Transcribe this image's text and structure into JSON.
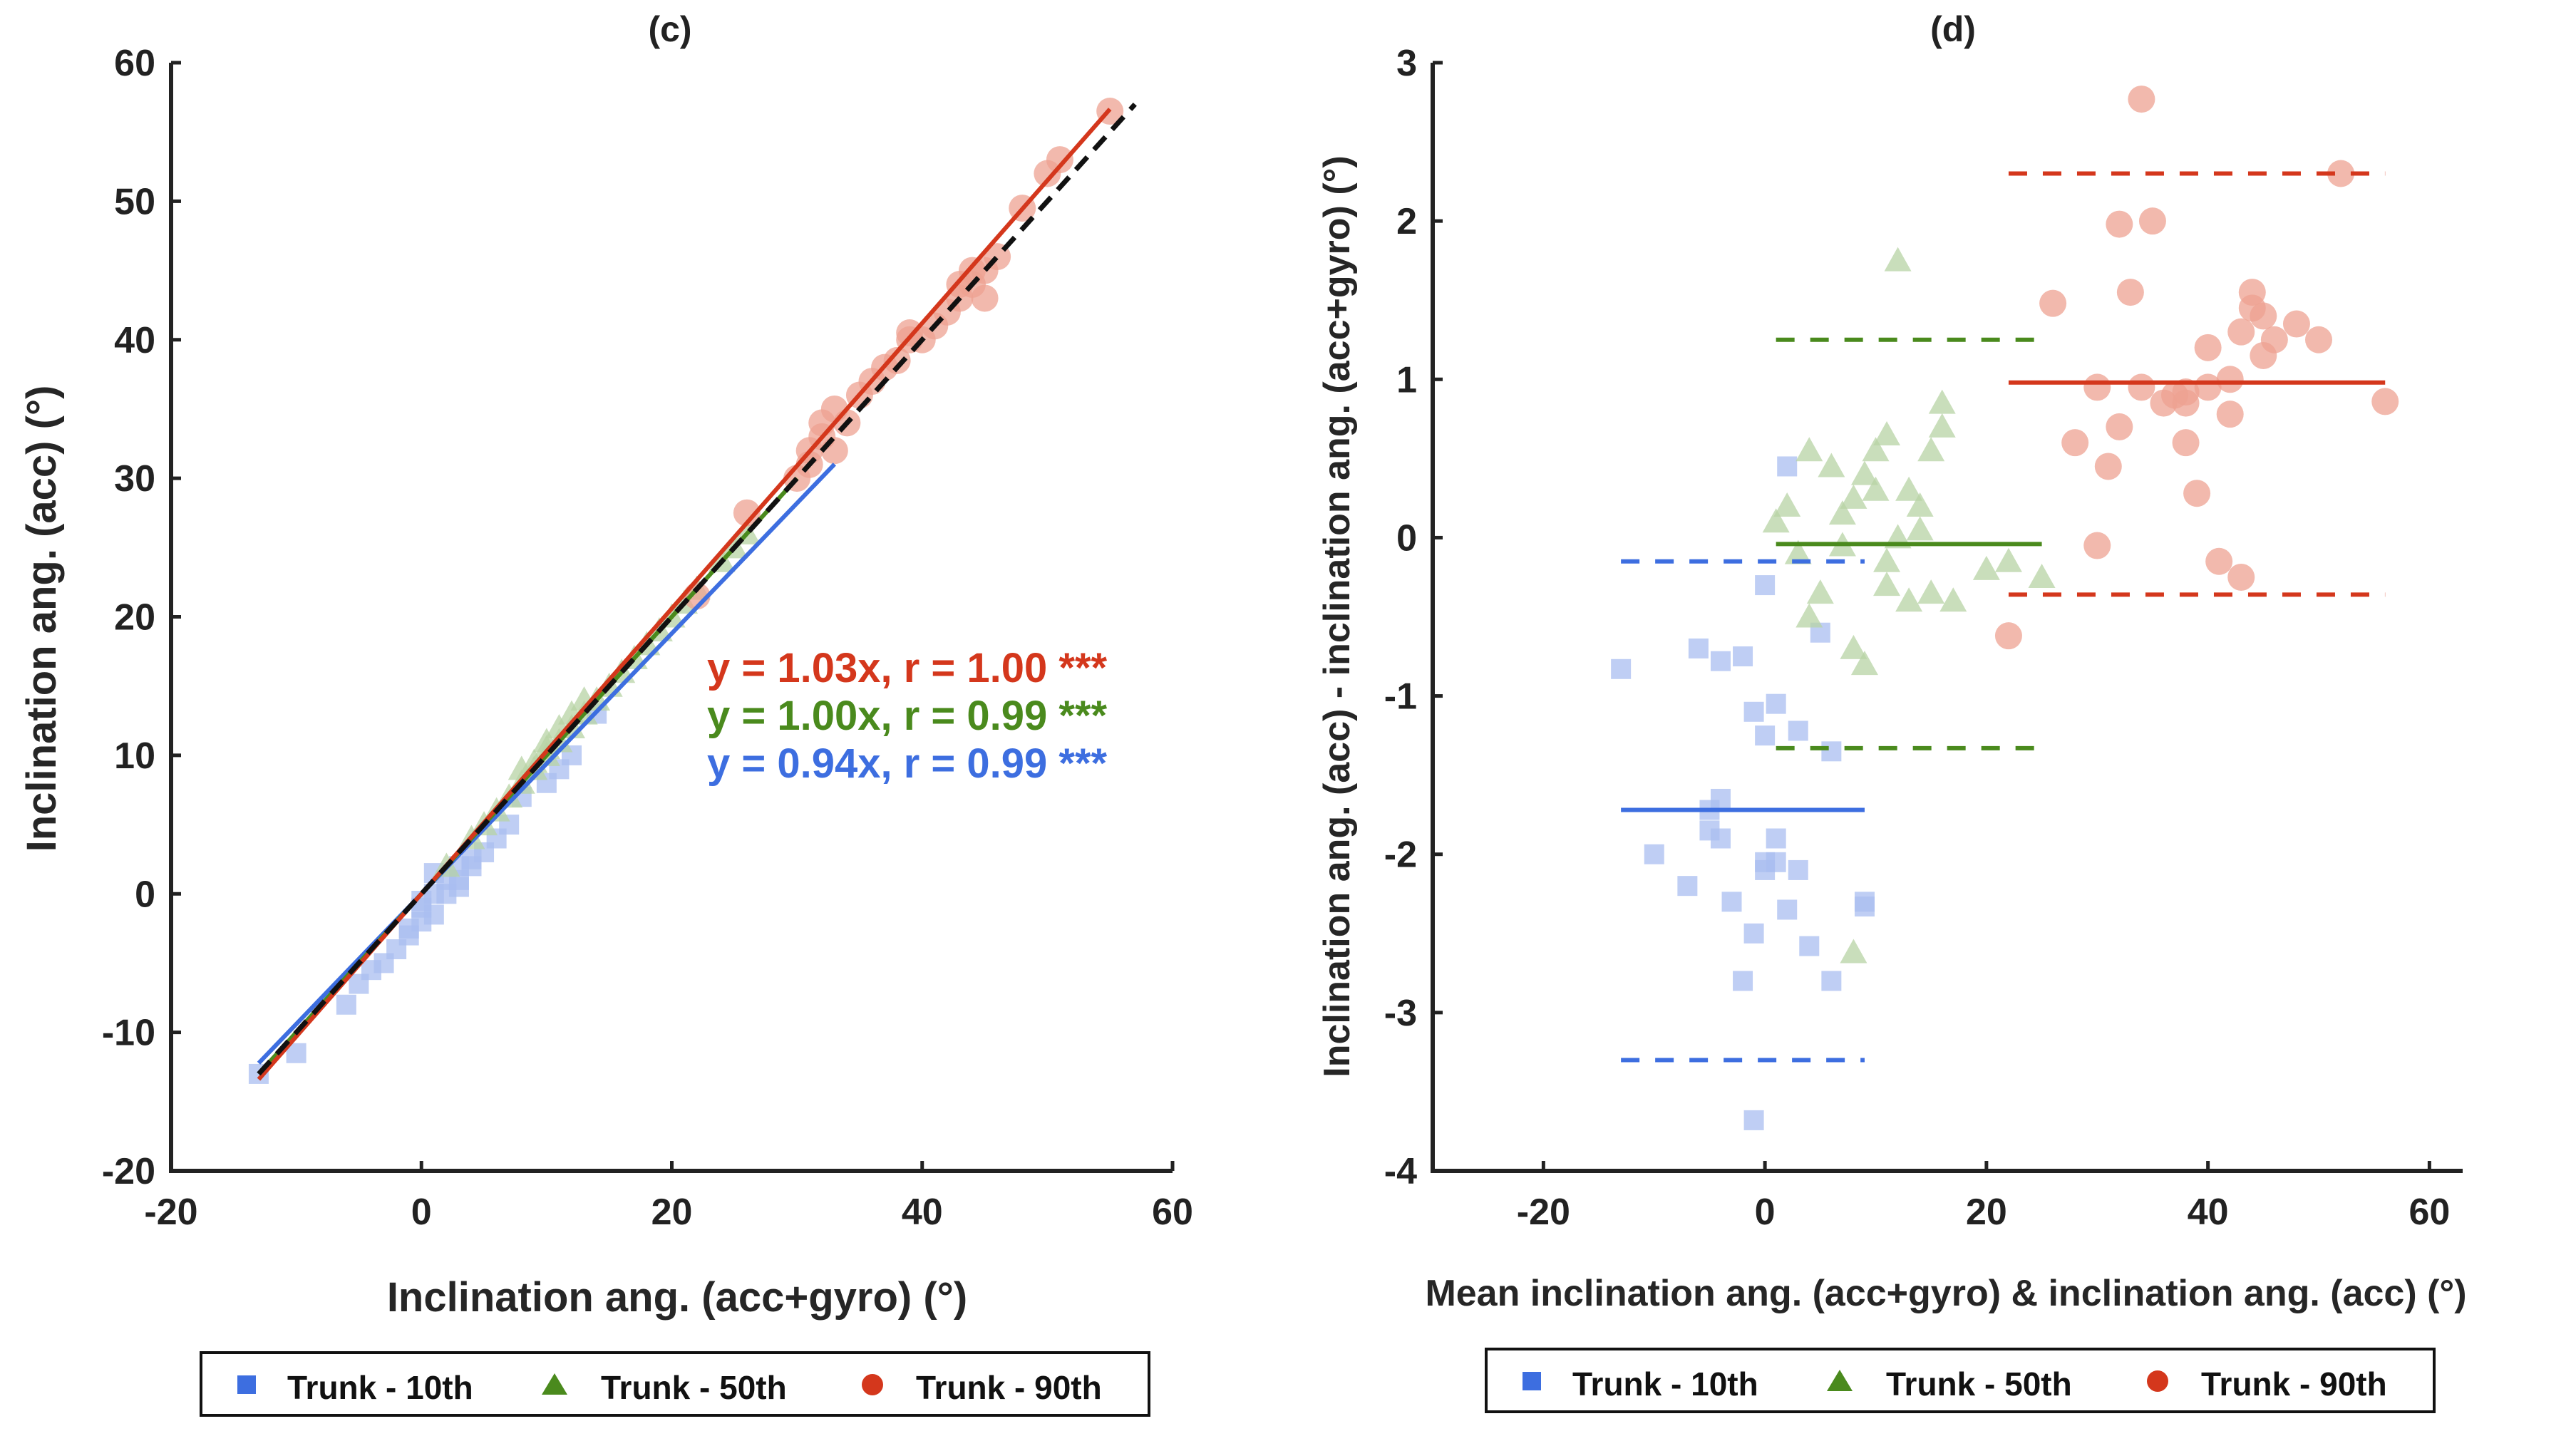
{
  "colors": {
    "blue": "#3d6ee0",
    "green": "#4a8a1d",
    "red": "#d4371c",
    "blue_marker": "#a9bdf0",
    "green_marker": "#b7d3a4",
    "red_marker": "#eea291",
    "black": "#111111"
  },
  "chart_data": [
    {
      "id": "c",
      "type": "scatter",
      "title": "(c)",
      "xlabel": "Inclination ang. (acc+gyro) (°)",
      "ylabel": "Inclination ang. (acc) (°)",
      "xlim": [
        -20,
        60
      ],
      "ylim": [
        -20,
        60
      ],
      "xticks": [
        -20,
        0,
        20,
        40,
        60
      ],
      "yticks": [
        -20,
        -10,
        0,
        10,
        20,
        30,
        40,
        50,
        60
      ],
      "legend": {
        "position": "bottom",
        "entries": [
          {
            "label": "Trunk - 10th",
            "marker": "square",
            "color": "blue"
          },
          {
            "label": "Trunk - 50th",
            "marker": "triangle",
            "color": "green"
          },
          {
            "label": "Trunk - 90th",
            "marker": "circle",
            "color": "red"
          }
        ]
      },
      "annotations": [
        {
          "text": "y = 1.03x, r = 1.00 ***",
          "color": "red"
        },
        {
          "text": "y = 1.00x, r = 0.99 ***",
          "color": "green"
        },
        {
          "text": "y = 0.94x, r = 0.99 ***",
          "color": "blue"
        }
      ],
      "series": [
        {
          "name": "Trunk - 10th",
          "marker": "square",
          "color": "blue_marker",
          "x": [
            -13,
            -10,
            -6,
            -5,
            -4,
            -2,
            -1,
            0,
            0,
            1,
            1,
            2,
            2,
            3,
            3,
            4,
            5,
            6,
            7,
            8,
            10,
            11,
            12,
            14,
            -3,
            -1,
            0,
            1,
            3,
            4
          ],
          "y": [
            -13,
            -11.5,
            -8,
            -6.5,
            -5.5,
            -4,
            -3,
            -2,
            -1,
            -1.5,
            0,
            0,
            1,
            0.5,
            2,
            2.5,
            3,
            4,
            5,
            7,
            8,
            9,
            10,
            13,
            -5,
            -2.5,
            -0.5,
            1.5,
            1,
            2
          ]
        },
        {
          "name": "Trunk - 50th",
          "marker": "triangle",
          "color": "green_marker",
          "x": [
            2,
            4,
            5,
            6,
            7,
            8,
            9,
            9,
            10,
            10,
            11,
            11,
            12,
            12,
            13,
            14,
            15,
            16,
            17,
            18,
            19,
            20,
            21,
            22,
            24,
            25,
            26,
            8,
            10,
            13
          ],
          "y": [
            2,
            4,
            5,
            6,
            7,
            8,
            9,
            9.5,
            10,
            10.5,
            11,
            12,
            12,
            13,
            13,
            14,
            15,
            16,
            17,
            18,
            19,
            20,
            21,
            22,
            24,
            25,
            26,
            9,
            11,
            14
          ]
        },
        {
          "name": "Trunk - 90th",
          "marker": "circle",
          "color": "red_marker",
          "x": [
            22,
            26,
            30,
            31,
            31,
            32,
            32,
            33,
            33,
            34,
            35,
            36,
            37,
            38,
            39,
            40,
            41,
            42,
            43,
            43,
            44,
            44,
            45,
            45,
            46,
            48,
            50,
            51,
            55,
            39
          ],
          "y": [
            21.5,
            27.5,
            30,
            31,
            32,
            33,
            34,
            32,
            35,
            34,
            36,
            37,
            38,
            38.5,
            40,
            40,
            41,
            42,
            43,
            44,
            44,
            45,
            45,
            43,
            46,
            49.5,
            52,
            53,
            56.5,
            40.5
          ]
        }
      ],
      "fit_lines": [
        {
          "name": "Trunk - 10th fit",
          "color": "blue",
          "slope": 0.94,
          "x_range": [
            -13,
            33
          ]
        },
        {
          "name": "Trunk - 50th fit",
          "color": "green",
          "slope": 1.0,
          "x_range": [
            -13,
            30
          ]
        },
        {
          "name": "Trunk - 90th fit",
          "color": "red",
          "slope": 1.03,
          "x_range": [
            -13,
            55
          ]
        },
        {
          "name": "identity",
          "color": "black",
          "slope": 1.0,
          "x_range": [
            -13,
            57
          ],
          "dashed": true
        }
      ]
    },
    {
      "id": "d",
      "type": "scatter",
      "title": "(d)",
      "xlabel": "Mean inclination ang. (acc+gyro) & inclination ang. (acc) (°)",
      "ylabel": "Inclination ang. (acc) - inclination ang. (acc+gyro) (°)",
      "xlim": [
        -30,
        63
      ],
      "ylim": [
        -4,
        3
      ],
      "xticks": [
        -20,
        0,
        20,
        40,
        60
      ],
      "yticks": [
        -4,
        -3,
        -2,
        -1,
        0,
        1,
        2,
        3
      ],
      "legend": {
        "position": "bottom",
        "entries": [
          {
            "label": "Trunk - 10th",
            "marker": "square",
            "color": "blue"
          },
          {
            "label": "Trunk - 50th",
            "marker": "triangle",
            "color": "green"
          },
          {
            "label": "Trunk - 90th",
            "marker": "circle",
            "color": "red"
          }
        ]
      },
      "series": [
        {
          "name": "Trunk - 10th",
          "marker": "square",
          "color": "blue_marker",
          "x": [
            -13,
            -10,
            -6,
            -5,
            -4,
            -3,
            -2,
            -2,
            -1,
            -1,
            0,
            0,
            0,
            1,
            2,
            2,
            3,
            4,
            5,
            6,
            9,
            9,
            -7,
            -5,
            -4,
            1,
            0,
            6,
            3,
            -4,
            -1,
            1
          ],
          "y": [
            -0.83,
            -2.0,
            -0.7,
            -1.85,
            -0.78,
            -2.3,
            -2.8,
            -0.75,
            -2.5,
            -1.1,
            -2.1,
            -1.25,
            -0.3,
            -2.05,
            -2.35,
            0.45,
            -1.22,
            -2.58,
            -0.6,
            -1.35,
            -2.3,
            -2.33,
            -2.2,
            -1.72,
            -1.65,
            -1.05,
            -2.05,
            -2.8,
            -2.1,
            -1.9,
            -3.68,
            -1.9
          ]
        },
        {
          "name": "Trunk - 50th",
          "marker": "triangle",
          "color": "green_marker",
          "x": [
            1,
            2,
            3,
            4,
            5,
            6,
            7,
            8,
            8,
            9,
            9,
            10,
            10,
            11,
            11,
            12,
            12,
            13,
            13,
            14,
            15,
            15,
            16,
            16,
            17,
            20,
            22,
            25,
            8,
            11,
            14,
            7,
            4
          ],
          "y": [
            0.1,
            0.2,
            -0.1,
            0.55,
            -0.35,
            0.45,
            -0.05,
            -0.7,
            0.25,
            -0.8,
            0.4,
            0.55,
            0.3,
            -0.3,
            0.65,
            1.75,
            0.0,
            -0.4,
            0.3,
            0.05,
            0.55,
            -0.35,
            0.85,
            0.7,
            -0.4,
            -0.2,
            -0.15,
            -0.25,
            -2.62,
            -0.15,
            0.2,
            0.15,
            -0.5
          ]
        },
        {
          "name": "Trunk - 90th",
          "marker": "circle",
          "color": "red_marker",
          "x": [
            22,
            26,
            28,
            30,
            31,
            32,
            32,
            33,
            34,
            34,
            35,
            36,
            37,
            38,
            38,
            39,
            40,
            40,
            41,
            42,
            42,
            43,
            43,
            44,
            44,
            45,
            45,
            46,
            48,
            50,
            52,
            56,
            30,
            38
          ],
          "y": [
            -0.62,
            1.48,
            0.6,
            0.95,
            0.45,
            1.98,
            0.7,
            1.55,
            2.77,
            0.95,
            2.0,
            0.85,
            0.9,
            0.6,
            0.85,
            0.28,
            1.2,
            0.95,
            -0.15,
            1.0,
            0.78,
            1.3,
            -0.25,
            1.45,
            1.55,
            1.15,
            1.4,
            1.25,
            1.35,
            1.25,
            2.3,
            0.86,
            -0.05,
            0.92
          ]
        }
      ],
      "reference_lines": [
        {
          "name": "Trunk - 10th mean",
          "color": "blue",
          "value": -1.72,
          "x_range": [
            -13,
            9
          ],
          "dashed": false
        },
        {
          "name": "Trunk - 10th upper",
          "color": "blue",
          "value": -0.15,
          "x_range": [
            -13,
            9
          ],
          "dashed": true
        },
        {
          "name": "Trunk - 10th lower",
          "color": "blue",
          "value": -3.3,
          "x_range": [
            -13,
            9
          ],
          "dashed": true
        },
        {
          "name": "Trunk - 50th mean",
          "color": "green",
          "value": -0.04,
          "x_range": [
            1,
            25
          ],
          "dashed": false
        },
        {
          "name": "Trunk - 50th upper",
          "color": "green",
          "value": 1.25,
          "x_range": [
            1,
            25
          ],
          "dashed": true
        },
        {
          "name": "Trunk - 50th lower",
          "color": "green",
          "value": -1.33,
          "x_range": [
            1,
            25
          ],
          "dashed": true
        },
        {
          "name": "Trunk - 90th mean",
          "color": "red",
          "value": 0.98,
          "x_range": [
            22,
            56
          ],
          "dashed": false
        },
        {
          "name": "Trunk - 90th upper",
          "color": "red",
          "value": 2.3,
          "x_range": [
            22,
            56
          ],
          "dashed": true
        },
        {
          "name": "Trunk - 90th lower",
          "color": "red",
          "value": -0.36,
          "x_range": [
            22,
            56
          ],
          "dashed": true
        }
      ]
    }
  ]
}
